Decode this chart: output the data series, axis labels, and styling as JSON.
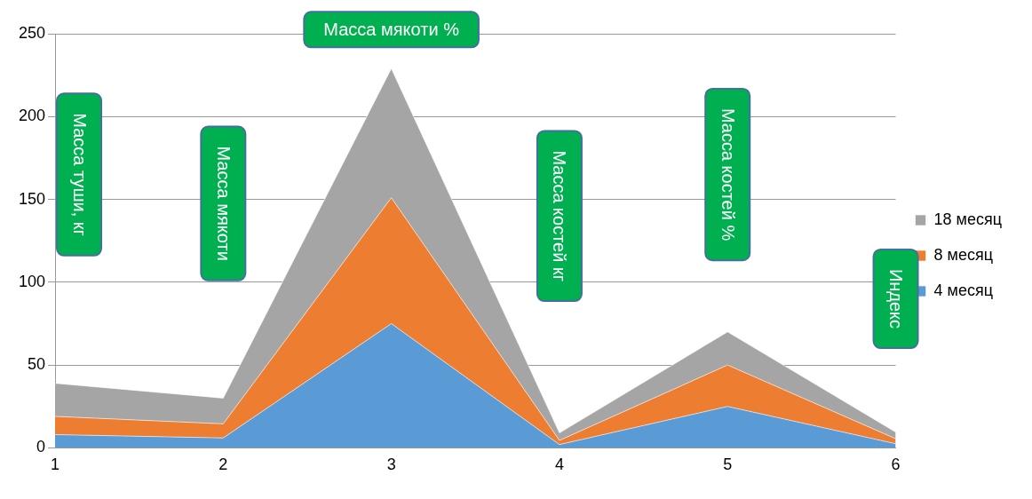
{
  "chart_data": {
    "type": "area",
    "stacked": true,
    "categories": [
      "1",
      "2",
      "3",
      "4",
      "5",
      "6"
    ],
    "series": [
      {
        "name": "4 месяц",
        "color": "#5b9bd5",
        "values": [
          8,
          6,
          75,
          2,
          25,
          2.5
        ]
      },
      {
        "name": "8 месяц",
        "color": "#ed7d31",
        "values": [
          11,
          8.5,
          76,
          2.5,
          25,
          3
        ]
      },
      {
        "name": "18 месяц",
        "color": "#a5a5a5",
        "values": [
          20,
          15.5,
          78,
          4.5,
          20,
          4
        ]
      }
    ],
    "ylim": [
      0,
      250
    ],
    "yticks": [
      0,
      50,
      100,
      150,
      200,
      250
    ],
    "grid": "y",
    "legend": "right",
    "annotations": [
      "Масса туши, кг",
      "Масса мякоти",
      "Масса мякоти %",
      "Масса костей кг",
      "Масса костей %",
      "Индекс"
    ]
  }
}
